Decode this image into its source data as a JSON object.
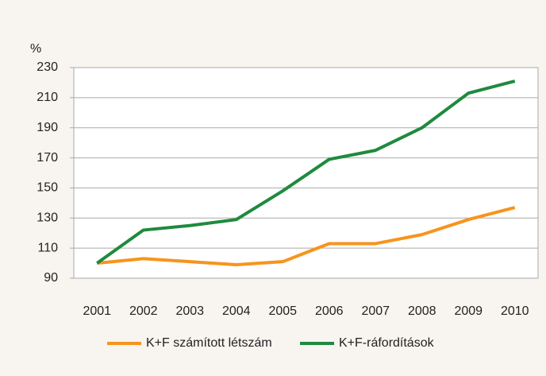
{
  "chart_data": {
    "type": "line",
    "y_label": "%",
    "categories": [
      "2001",
      "2002",
      "2003",
      "2004",
      "2005",
      "2006",
      "2007",
      "2008",
      "2009",
      "2010"
    ],
    "series": [
      {
        "name": "K+F számított létszám",
        "color": "#f7941d",
        "values": [
          100,
          103,
          101,
          99,
          101,
          113,
          113,
          119,
          129,
          137
        ]
      },
      {
        "name": "K+F-ráfordítások",
        "color": "#1e8a3e",
        "values": [
          100,
          122,
          125,
          129,
          148,
          169,
          175,
          190,
          213,
          221
        ]
      }
    ],
    "ylim": [
      90,
      230
    ],
    "yticks": [
      90,
      110,
      130,
      150,
      170,
      190,
      210,
      230
    ],
    "grid": true
  }
}
